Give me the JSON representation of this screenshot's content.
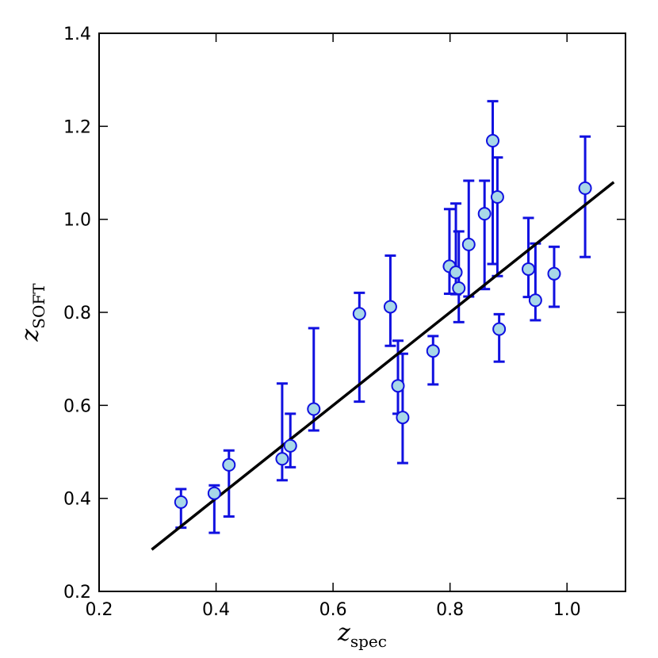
{
  "chart_data": {
    "type": "scatter",
    "title": "",
    "xlabel": {
      "main": "z",
      "sub": "spec"
    },
    "ylabel": {
      "main": "z",
      "sub": "SOFT"
    },
    "xlim": [
      0.2,
      1.1
    ],
    "ylim": [
      0.2,
      1.4
    ],
    "xticks": [
      "0.2",
      "0.4",
      "0.6",
      "0.8",
      "1.0"
    ],
    "yticks": [
      "0.2",
      "0.4",
      "0.6",
      "0.8",
      "1.0",
      "1.2",
      "1.4"
    ],
    "grid": false,
    "colors": {
      "marker_fill": "#a8d8e8",
      "marker_edge": "#1010e0",
      "errorbar": "#1010e0",
      "line": "#000000"
    },
    "fit_line": {
      "x": [
        0.29,
        1.08
      ],
      "y": [
        0.29,
        1.08
      ]
    },
    "points": [
      {
        "x": 0.34,
        "y": 0.392,
        "ylo": 0.337,
        "yhi": 0.42
      },
      {
        "x": 0.397,
        "y": 0.411,
        "ylo": 0.326,
        "yhi": 0.428
      },
      {
        "x": 0.422,
        "y": 0.472,
        "ylo": 0.361,
        "yhi": 0.503
      },
      {
        "x": 0.513,
        "y": 0.485,
        "ylo": 0.439,
        "yhi": 0.647
      },
      {
        "x": 0.527,
        "y": 0.513,
        "ylo": 0.467,
        "yhi": 0.582
      },
      {
        "x": 0.567,
        "y": 0.592,
        "ylo": 0.546,
        "yhi": 0.766
      },
      {
        "x": 0.645,
        "y": 0.797,
        "ylo": 0.608,
        "yhi": 0.842
      },
      {
        "x": 0.698,
        "y": 0.812,
        "ylo": 0.728,
        "yhi": 0.922
      },
      {
        "x": 0.711,
        "y": 0.642,
        "ylo": 0.582,
        "yhi": 0.739
      },
      {
        "x": 0.719,
        "y": 0.574,
        "ylo": 0.476,
        "yhi": 0.711
      },
      {
        "x": 0.771,
        "y": 0.717,
        "ylo": 0.645,
        "yhi": 0.749
      },
      {
        "x": 0.799,
        "y": 0.899,
        "ylo": 0.84,
        "yhi": 1.022
      },
      {
        "x": 0.81,
        "y": 0.886,
        "ylo": 0.839,
        "yhi": 1.034
      },
      {
        "x": 0.815,
        "y": 0.852,
        "ylo": 0.779,
        "yhi": 0.974
      },
      {
        "x": 0.832,
        "y": 0.946,
        "ylo": 0.834,
        "yhi": 1.083
      },
      {
        "x": 0.859,
        "y": 1.012,
        "ylo": 0.85,
        "yhi": 1.083
      },
      {
        "x": 0.873,
        "y": 1.169,
        "ylo": 0.904,
        "yhi": 1.254
      },
      {
        "x": 0.881,
        "y": 1.048,
        "ylo": 0.878,
        "yhi": 1.133
      },
      {
        "x": 0.884,
        "y": 0.764,
        "ylo": 0.694,
        "yhi": 0.796
      },
      {
        "x": 0.934,
        "y": 0.893,
        "ylo": 0.833,
        "yhi": 1.003
      },
      {
        "x": 0.946,
        "y": 0.826,
        "ylo": 0.783,
        "yhi": 0.948
      },
      {
        "x": 0.978,
        "y": 0.883,
        "ylo": 0.812,
        "yhi": 0.941
      },
      {
        "x": 1.031,
        "y": 1.067,
        "ylo": 0.919,
        "yhi": 1.178
      }
    ]
  }
}
